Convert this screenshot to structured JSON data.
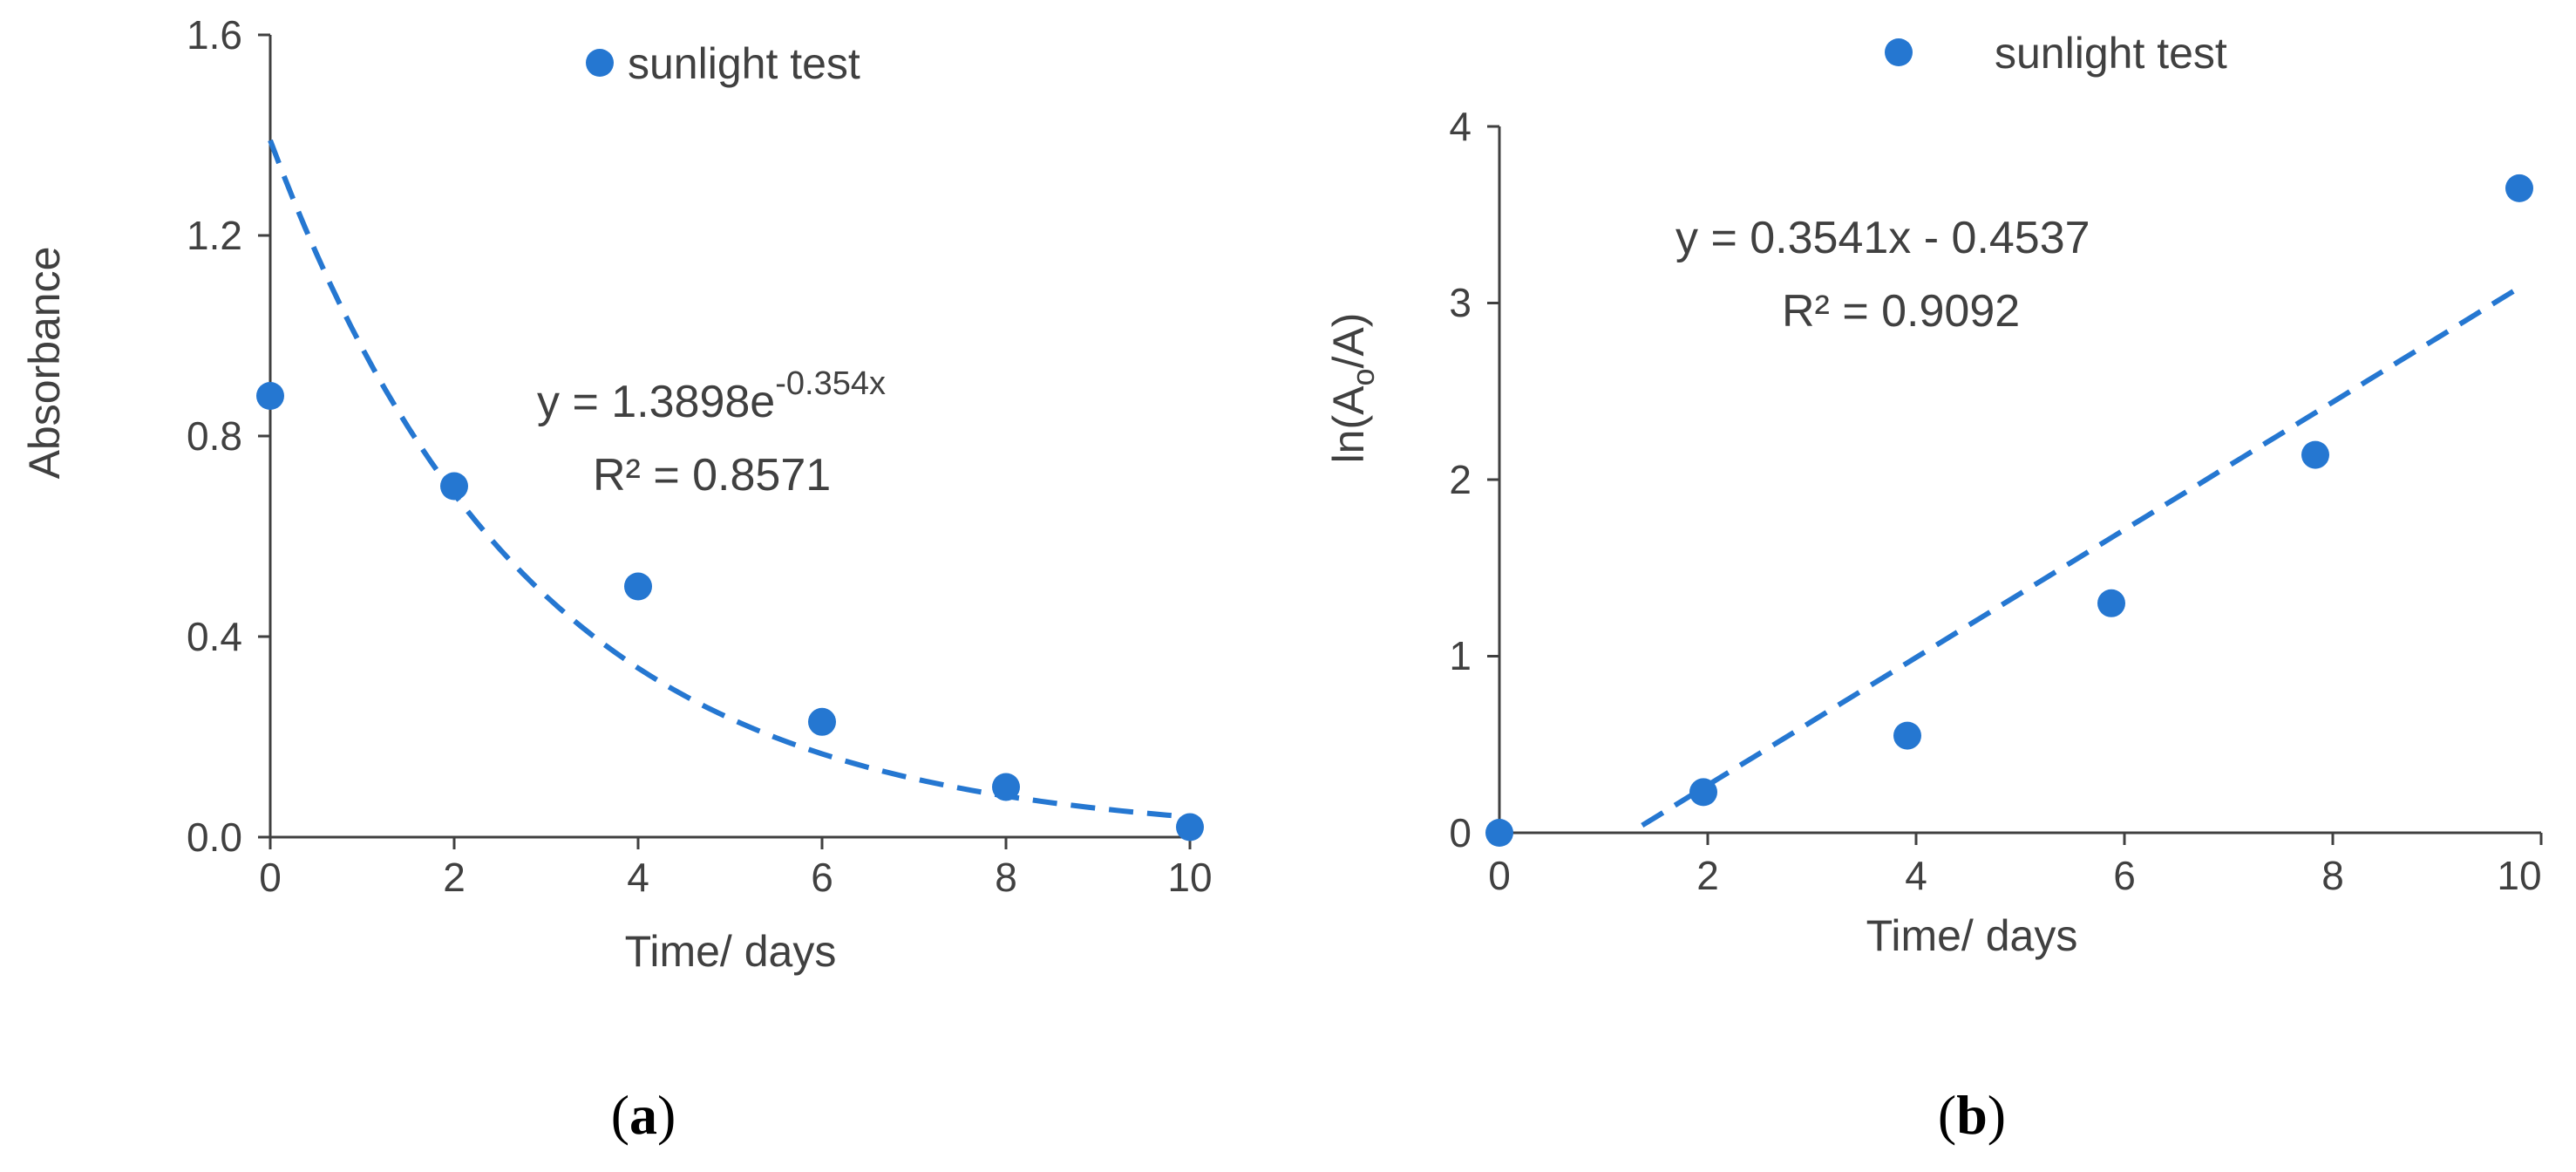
{
  "colors": {
    "series": "#2577d1",
    "axis": "#404040",
    "text": "#404040"
  },
  "chart_data": [
    {
      "id": "a",
      "type": "scatter",
      "panel_label": "a",
      "title": "",
      "xlabel": "Time/ days",
      "ylabel": "Absorbance",
      "xlim": [
        0,
        10
      ],
      "ylim": [
        0,
        1.6
      ],
      "x_ticks": [
        "0",
        "2",
        "4",
        "6",
        "8",
        "10"
      ],
      "y_ticks": [
        "0.0",
        "0.4",
        "0.8",
        "1.2",
        "1.6"
      ],
      "legend": "sunlight test",
      "legend_position": "top",
      "series": [
        {
          "name": "sunlight test",
          "x": [
            0,
            2,
            4,
            6,
            8,
            10
          ],
          "y": [
            0.88,
            0.7,
            0.5,
            0.23,
            0.1,
            0.02
          ]
        }
      ],
      "trendline": {
        "kind": "exponential",
        "a": 1.3898,
        "b": -0.354,
        "x_range": [
          0,
          10
        ],
        "equation": "y = 1.3898e",
        "exponent": "-0.354x",
        "r2_label": "R² = 0.8571"
      }
    },
    {
      "id": "b",
      "type": "scatter",
      "panel_label": "b",
      "title": "",
      "xlabel": "Time/ days",
      "ylabel_main": "ln(A",
      "ylabel_sub": "o",
      "ylabel_end": "/A)",
      "xlim": [
        0,
        10
      ],
      "ylim": [
        0,
        4
      ],
      "x_ticks": [
        "0",
        "2",
        "4",
        "6",
        "8",
        "10"
      ],
      "y_ticks": [
        "0",
        "1",
        "2",
        "3",
        "4"
      ],
      "legend": "sunlight test",
      "legend_position": "top",
      "series": [
        {
          "name": "sunlight test",
          "x": [
            0,
            2,
            4,
            6,
            8,
            10
          ],
          "y": [
            0.0,
            0.23,
            0.55,
            1.3,
            2.14,
            3.65
          ]
        }
      ],
      "trendline": {
        "kind": "linear",
        "slope": 0.3541,
        "intercept": -0.4537,
        "x_range": [
          1.4,
          10
        ],
        "equation": "y = 0.3541x - 0.4537",
        "r2_label": "R² = 0.9092"
      }
    }
  ]
}
